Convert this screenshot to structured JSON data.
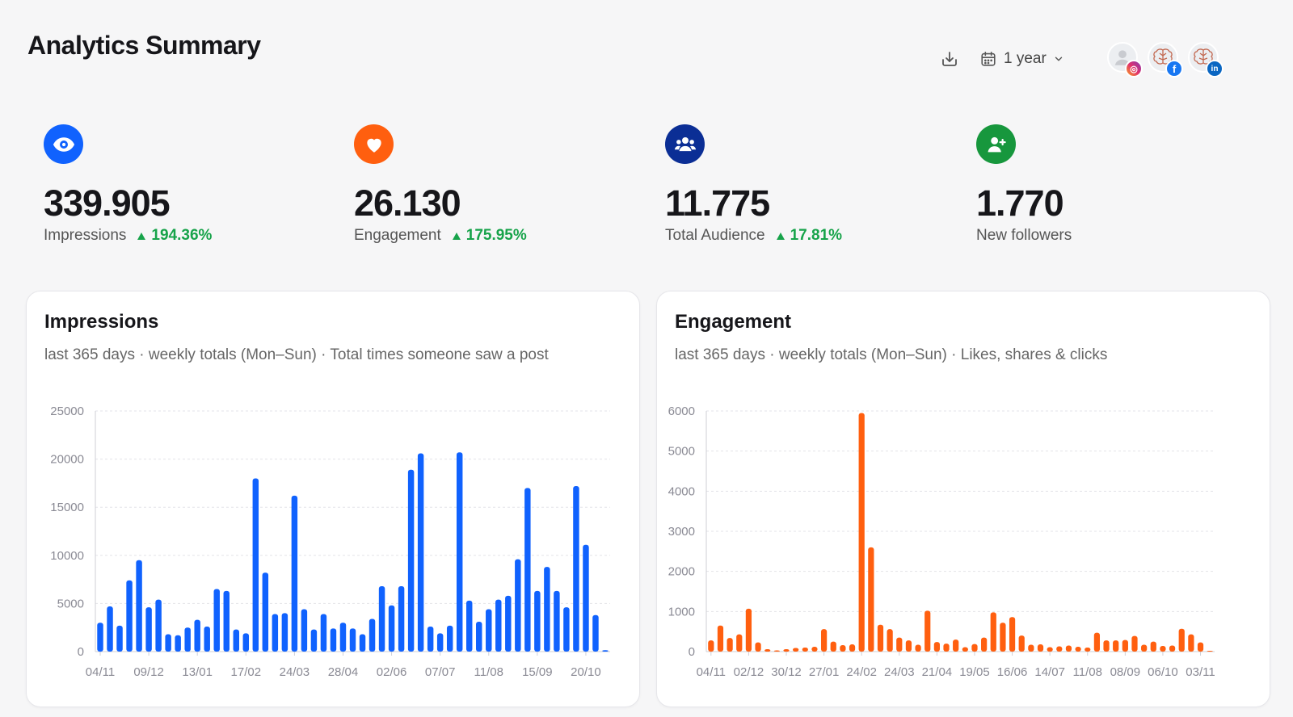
{
  "header": {
    "title": "Analytics Summary",
    "range_label": "1 year"
  },
  "accounts": [
    {
      "name": "instagram-account",
      "network": "instagram",
      "badge": "◎"
    },
    {
      "name": "facebook-account",
      "network": "facebook",
      "badge": "f"
    },
    {
      "name": "linkedin-account",
      "network": "linkedin",
      "badge": "in"
    }
  ],
  "stats": [
    {
      "value": "339.905",
      "label": "Impressions",
      "change": "194.36%",
      "color": "#1062fe"
    },
    {
      "value": "26.130",
      "label": "Engagement",
      "change": "175.95%",
      "color": "#ff5f0f"
    },
    {
      "value": "11.775",
      "label": "Total Audience",
      "change": "17.81%",
      "color": "#0b2e95"
    },
    {
      "value": "1.770",
      "label": "New followers",
      "change": "",
      "color": "#17973d"
    }
  ],
  "cards": {
    "impressions": {
      "title": "Impressions",
      "subtitle": "last 365 days · weekly totals (Mon–Sun) · Total times someone saw a post"
    },
    "engagement": {
      "title": "Engagement",
      "subtitle": "last 365 days · weekly totals (Mon–Sun) · Likes, shares & clicks"
    }
  },
  "chart_data": [
    {
      "type": "bar",
      "title": "Impressions",
      "color": "#1062fe",
      "ylim": [
        0,
        25000
      ],
      "yticks": [
        0,
        5000,
        10000,
        15000,
        20000,
        25000
      ],
      "grid": true,
      "xtick_labels": [
        "04/11",
        "09/12",
        "13/01",
        "17/02",
        "24/03",
        "28/04",
        "02/06",
        "07/07",
        "11/08",
        "15/09",
        "20/10"
      ],
      "xtick_every": 5,
      "values": [
        3000,
        4700,
        2700,
        7400,
        9500,
        4600,
        5400,
        1800,
        1700,
        2500,
        3300,
        2600,
        6500,
        6300,
        2300,
        1900,
        18000,
        8200,
        3900,
        4000,
        16200,
        4400,
        2300,
        3900,
        2400,
        3000,
        2400,
        1800,
        3400,
        6800,
        4800,
        6800,
        18900,
        20600,
        2600,
        1900,
        2700,
        20700,
        5300,
        3100,
        4400,
        5400,
        5800,
        9600,
        17000,
        6300,
        8800,
        6300,
        4600,
        17200,
        11100,
        3800,
        150
      ]
    },
    {
      "type": "bar",
      "title": "Engagement",
      "color": "#ff5f0f",
      "ylim": [
        0,
        6000
      ],
      "yticks": [
        0,
        1000,
        2000,
        3000,
        4000,
        5000,
        6000
      ],
      "grid": true,
      "xtick_labels": [
        "04/11",
        "02/12",
        "30/12",
        "27/01",
        "24/02",
        "24/03",
        "21/04",
        "19/05",
        "16/06",
        "14/07",
        "11/08",
        "08/09",
        "06/10",
        "03/11"
      ],
      "xtick_every": 4,
      "values": [
        280,
        650,
        340,
        430,
        1070,
        230,
        60,
        30,
        60,
        90,
        100,
        120,
        560,
        250,
        160,
        180,
        5950,
        2600,
        670,
        560,
        350,
        280,
        170,
        1020,
        240,
        200,
        300,
        110,
        190,
        350,
        980,
        720,
        860,
        400,
        170,
        180,
        110,
        130,
        150,
        120,
        100,
        470,
        280,
        280,
        290,
        390,
        170,
        250,
        140,
        150,
        570,
        430,
        230,
        20
      ]
    }
  ]
}
